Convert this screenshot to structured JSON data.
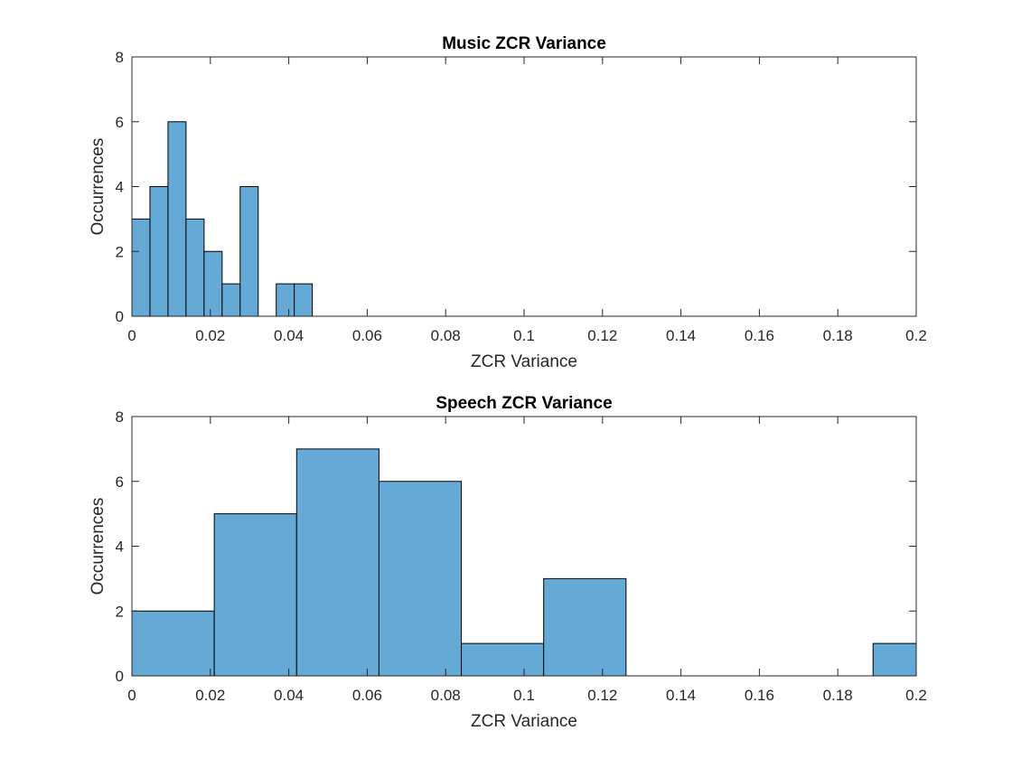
{
  "chart_data": [
    {
      "type": "bar",
      "title": "Music ZCR Variance",
      "xlabel": "ZCR Variance",
      "ylabel": "Occurrences",
      "xlim": [
        0,
        0.2
      ],
      "ylim": [
        0,
        8
      ],
      "xticks": [
        "0",
        "0.02",
        "0.04",
        "0.06",
        "0.08",
        "0.1",
        "0.12",
        "0.14",
        "0.16",
        "0.18",
        "0.2"
      ],
      "yticks": [
        "0",
        "2",
        "4",
        "6",
        "8"
      ],
      "bar_color": "#65A9D7",
      "edge_color": "#000000",
      "bins": [
        {
          "start": 0.0,
          "end": 0.0046,
          "count": 3
        },
        {
          "start": 0.0046,
          "end": 0.0092,
          "count": 4
        },
        {
          "start": 0.0092,
          "end": 0.0138,
          "count": 6
        },
        {
          "start": 0.0138,
          "end": 0.0184,
          "count": 3
        },
        {
          "start": 0.0184,
          "end": 0.023,
          "count": 2
        },
        {
          "start": 0.023,
          "end": 0.0276,
          "count": 1
        },
        {
          "start": 0.0276,
          "end": 0.0322,
          "count": 4
        },
        {
          "start": 0.0322,
          "end": 0.0368,
          "count": 0
        },
        {
          "start": 0.0368,
          "end": 0.0414,
          "count": 1
        },
        {
          "start": 0.0414,
          "end": 0.046,
          "count": 1
        }
      ]
    },
    {
      "type": "bar",
      "title": "Speech ZCR Variance",
      "xlabel": "ZCR Variance",
      "ylabel": "Occurrences",
      "xlim": [
        0,
        0.2
      ],
      "ylim": [
        0,
        8
      ],
      "xticks": [
        "0",
        "0.02",
        "0.04",
        "0.06",
        "0.08",
        "0.1",
        "0.12",
        "0.14",
        "0.16",
        "0.18",
        "0.2"
      ],
      "yticks": [
        "0",
        "2",
        "4",
        "6",
        "8"
      ],
      "bar_color": "#65A9D7",
      "edge_color": "#000000",
      "bins": [
        {
          "start": 0.0,
          "end": 0.021,
          "count": 2
        },
        {
          "start": 0.021,
          "end": 0.042,
          "count": 5
        },
        {
          "start": 0.042,
          "end": 0.063,
          "count": 7
        },
        {
          "start": 0.063,
          "end": 0.084,
          "count": 6
        },
        {
          "start": 0.084,
          "end": 0.105,
          "count": 1
        },
        {
          "start": 0.105,
          "end": 0.126,
          "count": 3
        },
        {
          "start": 0.126,
          "end": 0.147,
          "count": 0
        },
        {
          "start": 0.147,
          "end": 0.168,
          "count": 0
        },
        {
          "start": 0.168,
          "end": 0.189,
          "count": 0
        },
        {
          "start": 0.189,
          "end": 0.21,
          "count": 1
        }
      ]
    }
  ]
}
